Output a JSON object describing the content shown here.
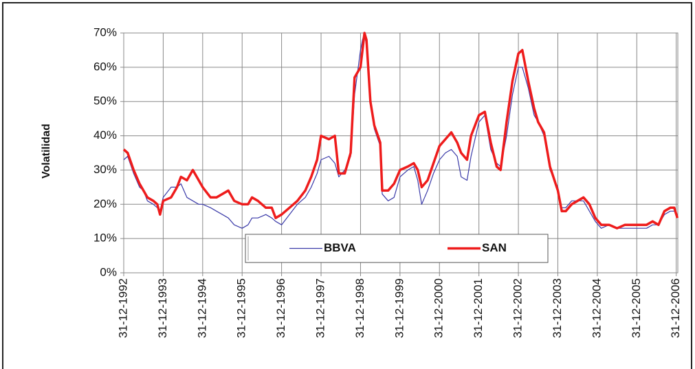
{
  "chart_data": {
    "type": "line",
    "y_label": "Volatilidad",
    "x": [
      1992.0,
      1992.1,
      1992.25,
      1992.4,
      1992.5,
      1992.6,
      1992.75,
      1992.85,
      1992.92,
      1993.0,
      1993.2,
      1993.35,
      1993.45,
      1993.6,
      1993.75,
      1993.9,
      1994.0,
      1994.2,
      1994.35,
      1994.5,
      1994.65,
      1994.8,
      1995.0,
      1995.15,
      1995.25,
      1995.4,
      1995.6,
      1995.75,
      1995.85,
      1996.0,
      1996.2,
      1996.4,
      1996.6,
      1996.75,
      1996.9,
      1997.0,
      1997.2,
      1997.35,
      1997.45,
      1997.6,
      1997.75,
      1997.85,
      1998.0,
      1998.05,
      1998.1,
      1998.15,
      1998.25,
      1998.35,
      1998.5,
      1998.55,
      1998.7,
      1998.85,
      1999.0,
      1999.2,
      1999.35,
      1999.45,
      1999.55,
      1999.7,
      1999.85,
      2000.0,
      2000.15,
      2000.3,
      2000.45,
      2000.55,
      2000.7,
      2000.8,
      2001.0,
      2001.15,
      2001.3,
      2001.45,
      2001.55,
      2001.7,
      2001.85,
      2002.0,
      2002.1,
      2002.25,
      2002.4,
      2002.5,
      2002.65,
      2002.8,
      2003.0,
      2003.1,
      2003.2,
      2003.35,
      2003.5,
      2003.65,
      2003.8,
      2003.95,
      2004.1,
      2004.3,
      2004.5,
      2004.7,
      2005.1,
      2005.25,
      2005.4,
      2005.55,
      2005.7,
      2005.85,
      2005.95,
      2006.03
    ],
    "series": [
      {
        "name": "BBVA",
        "color": "#3a3aa8",
        "width": 1.2,
        "values": [
          33,
          34,
          29,
          25,
          24,
          21,
          20,
          19,
          18,
          22,
          25,
          25,
          26,
          22,
          21,
          20,
          20,
          19,
          18,
          17,
          16,
          14,
          13,
          14,
          16,
          16,
          17,
          16,
          15,
          14,
          17,
          20,
          22,
          25,
          29,
          33,
          34,
          32,
          28,
          30,
          34,
          52,
          65,
          68,
          70,
          66,
          50,
          42,
          37,
          23,
          21,
          22,
          28,
          30,
          31,
          27,
          20,
          24,
          29,
          33,
          35,
          36,
          34,
          28,
          27,
          34,
          44,
          46,
          36,
          32,
          31,
          40,
          52,
          60,
          60,
          54,
          46,
          44,
          40,
          30,
          25,
          19,
          19,
          21,
          21,
          21,
          18,
          15,
          13,
          14,
          13,
          13,
          13,
          13,
          14,
          14,
          17,
          18,
          18,
          17
        ]
      },
      {
        "name": "SAN",
        "color": "#ee1c1c",
        "width": 3.5,
        "values": [
          36,
          35,
          30,
          26,
          24,
          22,
          21,
          20,
          17,
          21,
          22,
          25,
          28,
          27,
          30,
          27,
          25,
          22,
          22,
          23,
          24,
          21,
          20,
          20,
          22,
          21,
          19,
          19,
          16,
          17,
          19,
          21,
          24,
          28,
          33,
          40,
          39,
          40,
          29,
          29,
          35,
          57,
          60,
          65,
          70,
          68,
          50,
          43,
          38,
          24,
          24,
          26,
          30,
          31,
          32,
          30,
          25,
          27,
          32,
          37,
          39,
          41,
          38,
          35,
          33,
          40,
          46,
          47,
          38,
          31,
          30,
          44,
          56,
          64,
          65,
          56,
          48,
          44,
          41,
          31,
          24,
          18,
          18,
          20,
          21,
          22,
          20,
          16,
          14,
          14,
          13,
          14,
          14,
          14,
          15,
          14,
          18,
          19,
          19,
          16
        ]
      }
    ],
    "xlim": [
      1992,
      2006.04
    ],
    "xticks": [
      {
        "value": 1992,
        "label": "31-12-1992"
      },
      {
        "value": 1993,
        "label": "31-12-1993"
      },
      {
        "value": 1994,
        "label": "31-12-1994"
      },
      {
        "value": 1995,
        "label": "31-12-1995"
      },
      {
        "value": 1996,
        "label": "31-12-1996"
      },
      {
        "value": 1997,
        "label": "31-12-1997"
      },
      {
        "value": 1998,
        "label": "31-12-1998"
      },
      {
        "value": 1999,
        "label": "31-12-1999"
      },
      {
        "value": 2000,
        "label": "31-12-2000"
      },
      {
        "value": 2001,
        "label": "31-12-2001"
      },
      {
        "value": 2002,
        "label": "31-12-2002"
      },
      {
        "value": 2003,
        "label": "31-12-2003"
      },
      {
        "value": 2004,
        "label": "31-12-2004"
      },
      {
        "value": 2005,
        "label": "31-12-2005"
      },
      {
        "value": 2006,
        "label": "31-12-2006"
      }
    ],
    "ylim": [
      0,
      70
    ],
    "yticks": [
      {
        "value": 0,
        "label": "0%"
      },
      {
        "value": 10,
        "label": "10%"
      },
      {
        "value": 20,
        "label": "20%"
      },
      {
        "value": 30,
        "label": "30%"
      },
      {
        "value": 40,
        "label": "40%"
      },
      {
        "value": 50,
        "label": "50%"
      },
      {
        "value": 60,
        "label": "60%"
      },
      {
        "value": 70,
        "label": "70%"
      }
    ],
    "grid": true,
    "legend": "lower center"
  }
}
